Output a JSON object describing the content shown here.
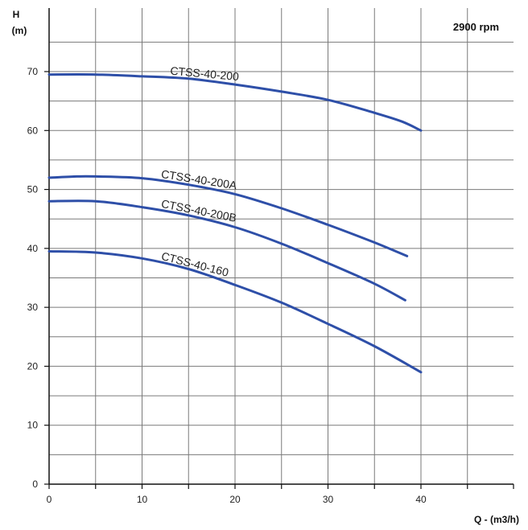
{
  "chart_data": {
    "type": "line",
    "title": "",
    "xlabel": "Q - (m3/h)",
    "ylabel_line1": "H",
    "ylabel_line2": "(m)",
    "annotation": "2900 rpm",
    "xlim": [
      0,
      50
    ],
    "ylim": [
      0,
      80
    ],
    "x_ticks": [
      0,
      10,
      20,
      30,
      40
    ],
    "x_grid": [
      5,
      10,
      15,
      20,
      25,
      30,
      35,
      40,
      45
    ],
    "y_ticks": [
      0,
      10,
      20,
      30,
      40,
      50,
      60,
      70
    ],
    "y_grid": [
      5,
      10,
      15,
      20,
      25,
      30,
      35,
      40,
      45,
      50,
      55,
      60,
      65,
      70,
      75
    ],
    "grid": true,
    "line_color": "#2e4fa8",
    "series": [
      {
        "name": "CTSS-40-200",
        "x": [
          0,
          5,
          10,
          15,
          20,
          25,
          30,
          35,
          38,
          40
        ],
        "y": [
          69.5,
          69.5,
          69.2,
          68.8,
          67.8,
          66.6,
          65.2,
          63.0,
          61.5,
          60.0
        ]
      },
      {
        "name": "CTSS-40-200A",
        "x": [
          0,
          3,
          5,
          10,
          15,
          20,
          25,
          30,
          35,
          38.5
        ],
        "y": [
          52.0,
          52.2,
          52.2,
          51.9,
          50.8,
          49.2,
          46.8,
          44.0,
          41.0,
          38.7
        ]
      },
      {
        "name": "CTSS-40-200B",
        "x": [
          0,
          5,
          10,
          15,
          20,
          25,
          30,
          35,
          38.3
        ],
        "y": [
          48.0,
          48.0,
          47.0,
          45.6,
          43.6,
          40.8,
          37.5,
          34.0,
          31.2
        ]
      },
      {
        "name": "CTSS-40-160",
        "x": [
          0,
          5,
          10,
          15,
          20,
          25,
          30,
          35,
          40
        ],
        "y": [
          39.5,
          39.3,
          38.3,
          36.5,
          33.8,
          30.8,
          27.2,
          23.4,
          19.0
        ]
      }
    ]
  }
}
